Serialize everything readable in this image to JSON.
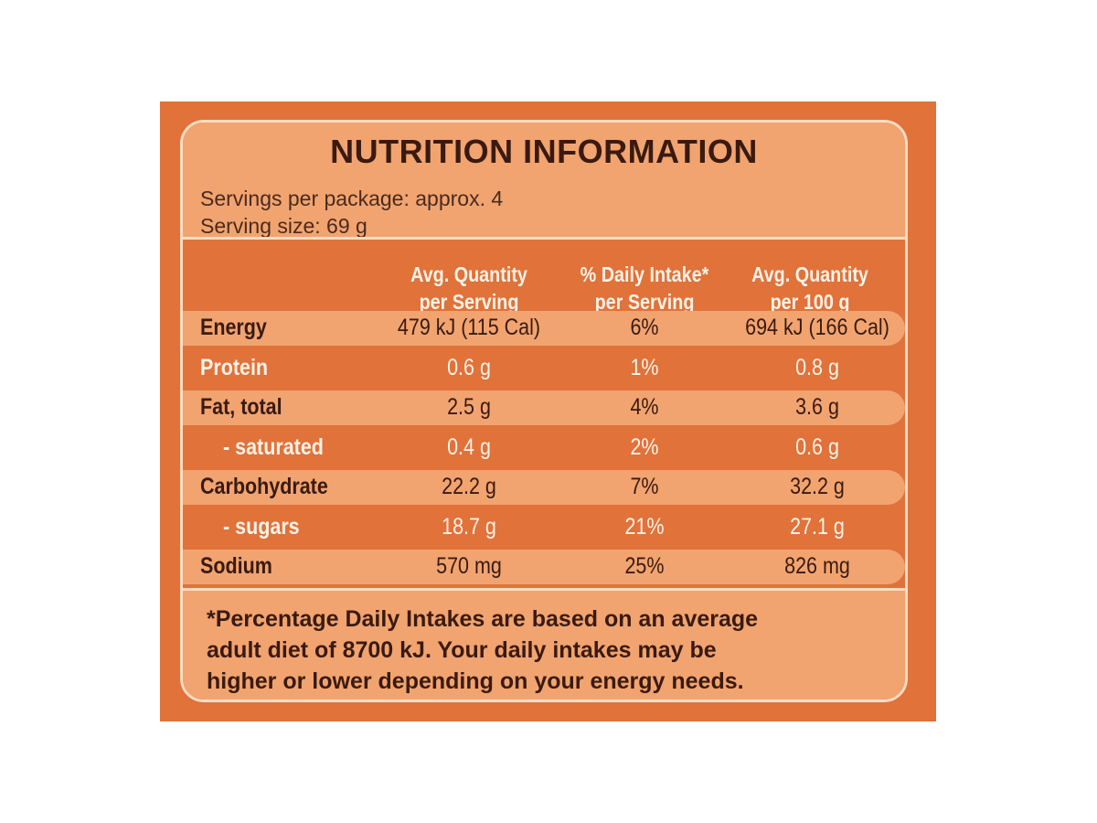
{
  "title": "NUTRITION INFORMATION",
  "servings_per_package": "Servings per package: approx. 4",
  "serving_size": "Serving size: 69 g",
  "columns": [
    "Avg. Quantity\nper Serving",
    "% Daily Intake*\nper Serving",
    "Avg. Quantity\nper 100 g"
  ],
  "rows": [
    {
      "label": "Energy",
      "per_serving": "479 kJ (115 Cal)",
      "daily_intake": "6%",
      "per_100g": "694 kJ (166 Cal)"
    },
    {
      "label": "Protein",
      "per_serving": "0.6 g",
      "daily_intake": "1%",
      "per_100g": "0.8 g"
    },
    {
      "label": "Fat, total",
      "per_serving": "2.5 g",
      "daily_intake": "4%",
      "per_100g": "3.6 g"
    },
    {
      "label": "- saturated",
      "per_serving": "0.4 g",
      "daily_intake": "2%",
      "per_100g": "0.6 g"
    },
    {
      "label": "Carbohydrate",
      "per_serving": "22.2 g",
      "daily_intake": "7%",
      "per_100g": "32.2 g"
    },
    {
      "label": "- sugars",
      "per_serving": "18.7 g",
      "daily_intake": "21%",
      "per_100g": "27.1 g"
    },
    {
      "label": "Sodium",
      "per_serving": "570 mg",
      "daily_intake": "25%",
      "per_100g": "826 mg"
    }
  ],
  "footnote": [
    "*Percentage Daily Intakes are based on an average",
    "adult diet of 8700 kJ. Your daily intakes may be",
    "higher or lower depending on your energy needs."
  ],
  "colors": {
    "panel": "#e0723a",
    "band": "#f1a470",
    "border": "#f9dcc2",
    "dark_text": "#3a1a10",
    "light_text": "#fff3e8"
  }
}
